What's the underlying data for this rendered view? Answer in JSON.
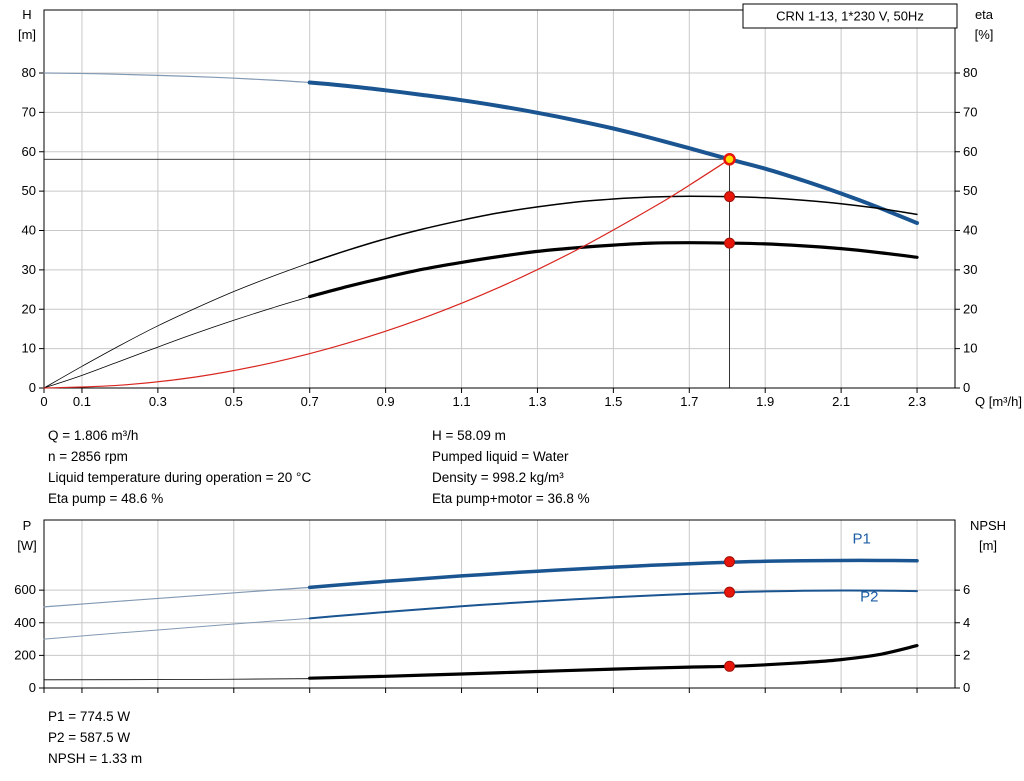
{
  "colors": {
    "curve_blue": "#1a5591",
    "curve_blue_thin": "#8299b3",
    "curve_black": "#000000",
    "curve_red": "#d8261f",
    "grid": "#c8c8c8",
    "axis": "#000000",
    "marker_red": "#e8150b",
    "marker_red_edge": "#a00f07",
    "marker_yellow": "#ffdf00",
    "label_blue": "#1c5ea8"
  },
  "info": {
    "left": [
      "Q = 1.806 m³/h",
      "n = 2856 rpm",
      "Liquid temperature during operation = 20 °C",
      "Eta pump = 48.6 %"
    ],
    "right": [
      "H = 58.09 m",
      "Pumped liquid = Water",
      "Density = 998.2 kg/m³",
      "Eta pump+motor = 36.8 %"
    ],
    "bottom": [
      "P1 = 774.5 W",
      "P2 = 587.5 W",
      "NPSH = 1.33 m"
    ]
  },
  "chart_data": [
    {
      "id": "qh-chart",
      "type": "line",
      "title": "CRN 1-13, 1*230 V, 50Hz",
      "x_axis": {
        "label": "Q [m³/h]",
        "min": 0,
        "max": 2.4,
        "tick_values": [
          0,
          0.1,
          0.3,
          0.5,
          0.7,
          0.9,
          1.1,
          1.3,
          1.5,
          1.7,
          1.9,
          2.1,
          2.3
        ],
        "tick_labels": [
          "0",
          "0.1",
          "0.3",
          "0.5",
          "0.7",
          "0.9",
          "1.1",
          "1.3",
          "1.5",
          "1.7",
          "1.9",
          "2.1",
          "2.3"
        ]
      },
      "y_left": {
        "label": "H",
        "unit": "[m]",
        "min": 0,
        "max": 96,
        "tick_values": [
          0,
          10,
          20,
          30,
          40,
          50,
          60,
          70,
          80
        ],
        "tick_labels": [
          "0",
          "10",
          "20",
          "30",
          "40",
          "50",
          "60",
          "70",
          "80"
        ]
      },
      "y_right": {
        "label": "eta",
        "unit": "[%]",
        "min": 0,
        "max": 96,
        "tick_values": [
          0,
          10,
          20,
          30,
          40,
          50,
          60,
          70,
          80
        ],
        "tick_labels": [
          "0",
          "10",
          "20",
          "30",
          "40",
          "50",
          "60",
          "70",
          "80"
        ]
      },
      "ref_lines": [
        {
          "orient": "h",
          "y": 58.09,
          "x1": 0,
          "x2": 1.806
        },
        {
          "orient": "v",
          "x": 1.806,
          "y1": 0,
          "y2": 58.09
        }
      ],
      "series": [
        {
          "name": "pump-curve-extension",
          "color": "curve_blue_thin",
          "width": 1.2,
          "scale": "left",
          "points": [
            [
              0,
              80
            ],
            [
              0.15,
              79.8
            ],
            [
              0.3,
              79.4
            ],
            [
              0.45,
              78.9
            ],
            [
              0.6,
              78.2
            ],
            [
              0.7,
              77.6
            ]
          ]
        },
        {
          "name": "pump-curve-h",
          "color": "curve_blue",
          "width": 4,
          "scale": "left",
          "points": [
            [
              0.7,
              77.6
            ],
            [
              0.8,
              76.7
            ],
            [
              0.9,
              75.6
            ],
            [
              1.0,
              74.4
            ],
            [
              1.1,
              73.1
            ],
            [
              1.2,
              71.6
            ],
            [
              1.3,
              69.9
            ],
            [
              1.4,
              68.0
            ],
            [
              1.5,
              65.9
            ],
            [
              1.6,
              63.5
            ],
            [
              1.7,
              60.9
            ],
            [
              1.806,
              58.09
            ],
            [
              1.9,
              55.7
            ],
            [
              2.0,
              52.7
            ],
            [
              2.1,
              49.4
            ],
            [
              2.2,
              45.8
            ],
            [
              2.3,
              41.9
            ]
          ]
        },
        {
          "name": "eta-pump-extension",
          "color": "curve_black",
          "width": 0.8,
          "scale": "right",
          "points": [
            [
              0,
              0
            ],
            [
              0.1,
              5.5
            ],
            [
              0.2,
              10.8
            ],
            [
              0.3,
              15.8
            ],
            [
              0.4,
              20.3
            ],
            [
              0.5,
              24.5
            ],
            [
              0.6,
              28.3
            ],
            [
              0.7,
              31.8
            ]
          ]
        },
        {
          "name": "eta-pump",
          "color": "curve_black",
          "width": 1.5,
          "scale": "right",
          "points": [
            [
              0.7,
              31.8
            ],
            [
              0.8,
              35.0
            ],
            [
              0.9,
              37.9
            ],
            [
              1.0,
              40.4
            ],
            [
              1.1,
              42.6
            ],
            [
              1.2,
              44.5
            ],
            [
              1.3,
              46.0
            ],
            [
              1.4,
              47.2
            ],
            [
              1.5,
              48.0
            ],
            [
              1.6,
              48.5
            ],
            [
              1.7,
              48.7
            ],
            [
              1.806,
              48.6
            ],
            [
              1.9,
              48.3
            ],
            [
              2.0,
              47.7
            ],
            [
              2.1,
              46.8
            ],
            [
              2.2,
              45.6
            ],
            [
              2.3,
              44.1
            ]
          ]
        },
        {
          "name": "eta-pump-motor-extension",
          "color": "curve_black",
          "width": 0.8,
          "scale": "right",
          "points": [
            [
              0,
              0
            ],
            [
              0.1,
              3.2
            ],
            [
              0.2,
              6.8
            ],
            [
              0.3,
              10.4
            ],
            [
              0.4,
              13.9
            ],
            [
              0.5,
              17.2
            ],
            [
              0.6,
              20.3
            ],
            [
              0.7,
              23.2
            ]
          ]
        },
        {
          "name": "eta-pump-motor",
          "color": "curve_black",
          "width": 3.2,
          "scale": "right",
          "points": [
            [
              0.7,
              23.2
            ],
            [
              0.8,
              25.8
            ],
            [
              0.9,
              28.1
            ],
            [
              1.0,
              30.2
            ],
            [
              1.1,
              31.9
            ],
            [
              1.2,
              33.4
            ],
            [
              1.3,
              34.7
            ],
            [
              1.4,
              35.6
            ],
            [
              1.5,
              36.3
            ],
            [
              1.6,
              36.8
            ],
            [
              1.7,
              36.9
            ],
            [
              1.806,
              36.8
            ],
            [
              1.9,
              36.6
            ],
            [
              2.0,
              36.1
            ],
            [
              2.1,
              35.4
            ],
            [
              2.2,
              34.4
            ],
            [
              2.3,
              33.2
            ]
          ]
        },
        {
          "name": "system-curve",
          "color": "curve_red",
          "width": 1.2,
          "scale": "left",
          "points": [
            [
              0,
              0
            ],
            [
              0.2,
              0.7
            ],
            [
              0.4,
              2.8
            ],
            [
              0.6,
              6.4
            ],
            [
              0.8,
              11.4
            ],
            [
              1.0,
              17.8
            ],
            [
              1.2,
              25.6
            ],
            [
              1.4,
              34.9
            ],
            [
              1.6,
              45.6
            ],
            [
              1.7,
              51.5
            ],
            [
              1.806,
              58.09
            ]
          ]
        }
      ],
      "markers": [
        {
          "x": 1.806,
          "y": 58.09,
          "scale": "left",
          "style": "duty"
        },
        {
          "x": 1.806,
          "y": 48.6,
          "scale": "right",
          "style": "dot"
        },
        {
          "x": 1.806,
          "y": 36.8,
          "scale": "right",
          "style": "dot"
        }
      ],
      "curve_labels": []
    },
    {
      "id": "power-chart",
      "type": "line",
      "x_axis": {
        "label": "",
        "min": 0,
        "max": 2.4,
        "tick_values": [
          0,
          0.1,
          0.3,
          0.5,
          0.7,
          0.9,
          1.1,
          1.3,
          1.5,
          1.7,
          1.9,
          2.1,
          2.3
        ],
        "tick_labels": []
      },
      "y_left": {
        "label": "P",
        "unit": "[W]",
        "min": 0,
        "max": 1030,
        "tick_values": [
          0,
          200,
          400,
          600
        ],
        "tick_labels": [
          "0",
          "200",
          "400",
          "600"
        ]
      },
      "y_right": {
        "label": "NPSH",
        "unit": "[m]",
        "min": 0,
        "max": 10.3,
        "tick_values": [
          0,
          2,
          4,
          6
        ],
        "tick_labels": [
          "0",
          "2",
          "4",
          "6"
        ]
      },
      "ref_lines": [],
      "series": [
        {
          "name": "p1-extension",
          "color": "curve_blue_thin",
          "width": 1.2,
          "scale": "left",
          "points": [
            [
              0,
              497
            ],
            [
              0.2,
              532
            ],
            [
              0.4,
              566
            ],
            [
              0.6,
              600
            ],
            [
              0.7,
              617
            ]
          ]
        },
        {
          "name": "p1-curve",
          "color": "curve_blue",
          "width": 3.5,
          "scale": "left",
          "points": [
            [
              0.7,
              617
            ],
            [
              0.8,
              636
            ],
            [
              0.9,
              654
            ],
            [
              1.0,
              671
            ],
            [
              1.1,
              687
            ],
            [
              1.2,
              702
            ],
            [
              1.3,
              716
            ],
            [
              1.4,
              729
            ],
            [
              1.5,
              741
            ],
            [
              1.6,
              752
            ],
            [
              1.7,
              762
            ],
            [
              1.806,
              771
            ],
            [
              1.9,
              777
            ],
            [
              2.0,
              780
            ],
            [
              2.1,
              782
            ],
            [
              2.2,
              782
            ],
            [
              2.3,
              780
            ]
          ]
        },
        {
          "name": "p2-extension",
          "color": "curve_blue_thin",
          "width": 1,
          "scale": "left",
          "points": [
            [
              0,
              300
            ],
            [
              0.2,
              338
            ],
            [
              0.4,
              374
            ],
            [
              0.6,
              410
            ],
            [
              0.7,
              427
            ]
          ]
        },
        {
          "name": "p2-curve",
          "color": "curve_blue",
          "width": 2,
          "scale": "left",
          "points": [
            [
              0.7,
              427
            ],
            [
              0.8,
              447
            ],
            [
              0.9,
              466
            ],
            [
              1.0,
              484
            ],
            [
              1.1,
              501
            ],
            [
              1.2,
              517
            ],
            [
              1.3,
              531
            ],
            [
              1.4,
              544
            ],
            [
              1.5,
              556
            ],
            [
              1.6,
              567
            ],
            [
              1.7,
              577
            ],
            [
              1.806,
              586
            ],
            [
              1.9,
              592
            ],
            [
              2.0,
              596
            ],
            [
              2.1,
              598
            ],
            [
              2.2,
              597
            ],
            [
              2.3,
              594
            ]
          ]
        },
        {
          "name": "npsh-extension",
          "color": "curve_black",
          "width": 0.8,
          "scale": "right",
          "points": [
            [
              0,
              0.5
            ],
            [
              0.35,
              0.52
            ],
            [
              0.7,
              0.57
            ]
          ]
        },
        {
          "name": "npsh-curve",
          "color": "curve_black",
          "width": 3.2,
          "scale": "right",
          "points": [
            [
              0.7,
              0.6
            ],
            [
              0.9,
              0.72
            ],
            [
              1.1,
              0.86
            ],
            [
              1.3,
              1.01
            ],
            [
              1.5,
              1.16
            ],
            [
              1.7,
              1.28
            ],
            [
              1.806,
              1.33
            ],
            [
              1.9,
              1.42
            ],
            [
              2.0,
              1.56
            ],
            [
              2.1,
              1.74
            ],
            [
              2.2,
              2.05
            ],
            [
              2.3,
              2.6
            ]
          ]
        }
      ],
      "markers": [
        {
          "x": 1.806,
          "y": 774.5,
          "scale": "left",
          "style": "dot"
        },
        {
          "x": 1.806,
          "y": 587.5,
          "scale": "left",
          "style": "dot"
        },
        {
          "x": 1.806,
          "y": 1.33,
          "scale": "right",
          "style": "dot"
        }
      ],
      "curve_labels": [
        {
          "text": "P1",
          "x": 2.13,
          "y": 885,
          "scale": "left"
        },
        {
          "text": "P2",
          "x": 2.15,
          "y": 530,
          "scale": "left"
        }
      ]
    }
  ]
}
